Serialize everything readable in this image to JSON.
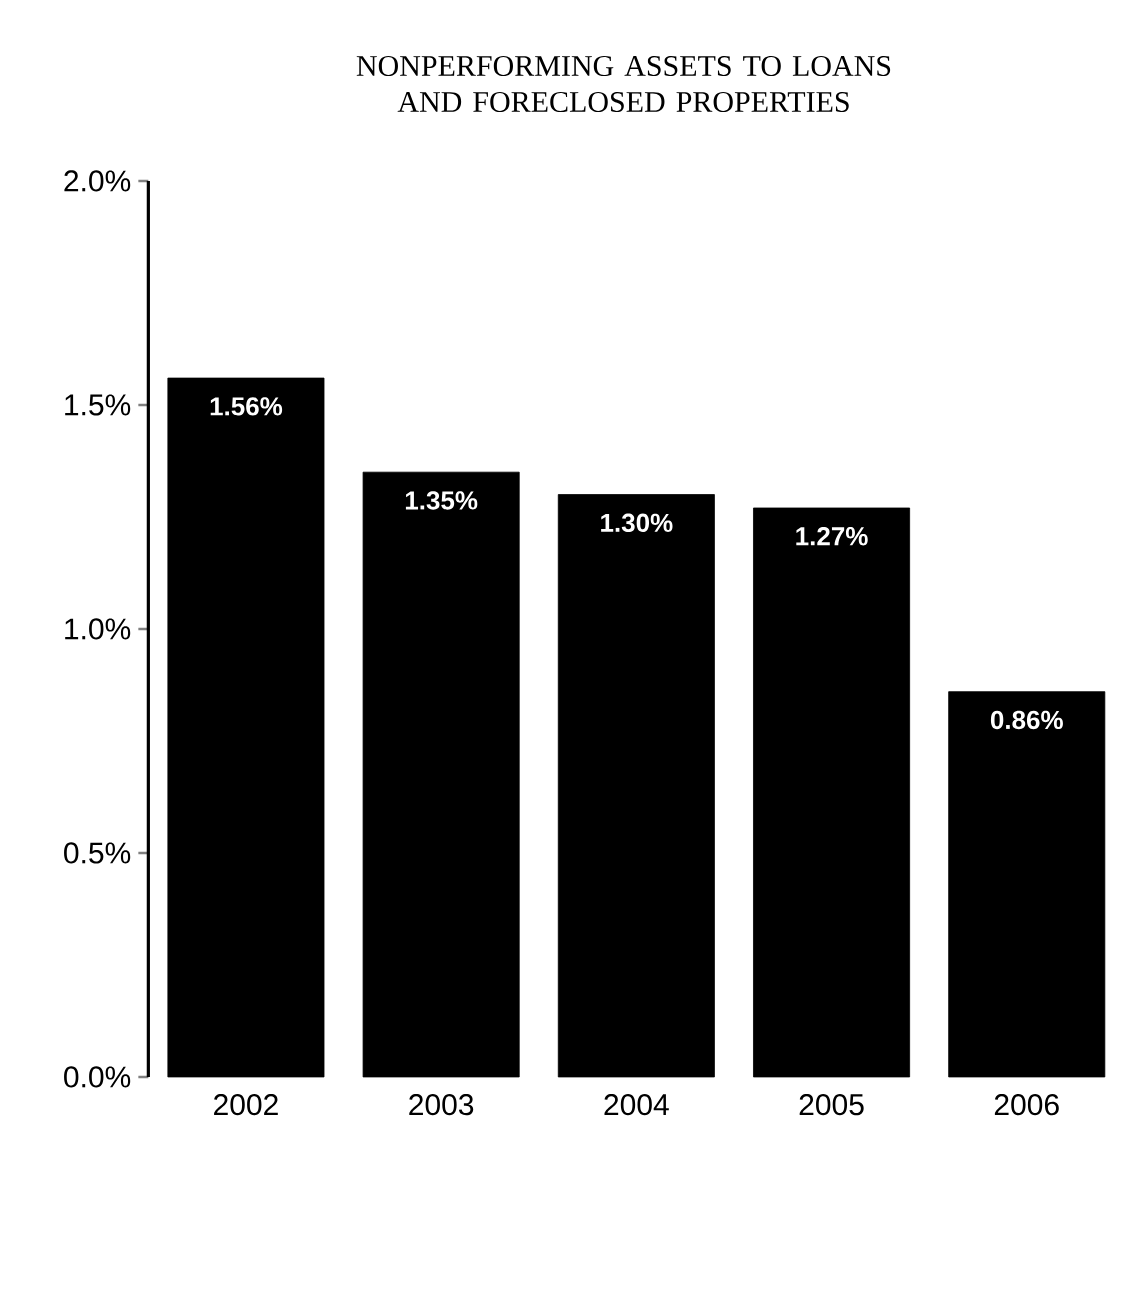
{
  "chart_data": {
    "type": "bar",
    "title": "NONPERFORMING ASSETS TO LOANS AND FORECLOSED PROPERTIES",
    "categories": [
      "2002",
      "2003",
      "2004",
      "2005",
      "2006"
    ],
    "values": [
      1.56,
      1.35,
      1.3,
      1.27,
      0.86
    ],
    "value_labels": [
      "1.56%",
      "1.35%",
      "1.30%",
      "1.27%",
      "0.86%"
    ],
    "color": "#000000",
    "ylim": [
      0,
      2.0
    ],
    "yticks": [
      {
        "value": 0,
        "label": "0.0%"
      },
      {
        "value": 0.5,
        "label": "0.5%"
      },
      {
        "value": 1.0,
        "label": "1.0%"
      },
      {
        "value": 1.5,
        "label": "1.5%"
      },
      {
        "value": 2.0,
        "label": "2.0%"
      }
    ],
    "grid": false
  }
}
